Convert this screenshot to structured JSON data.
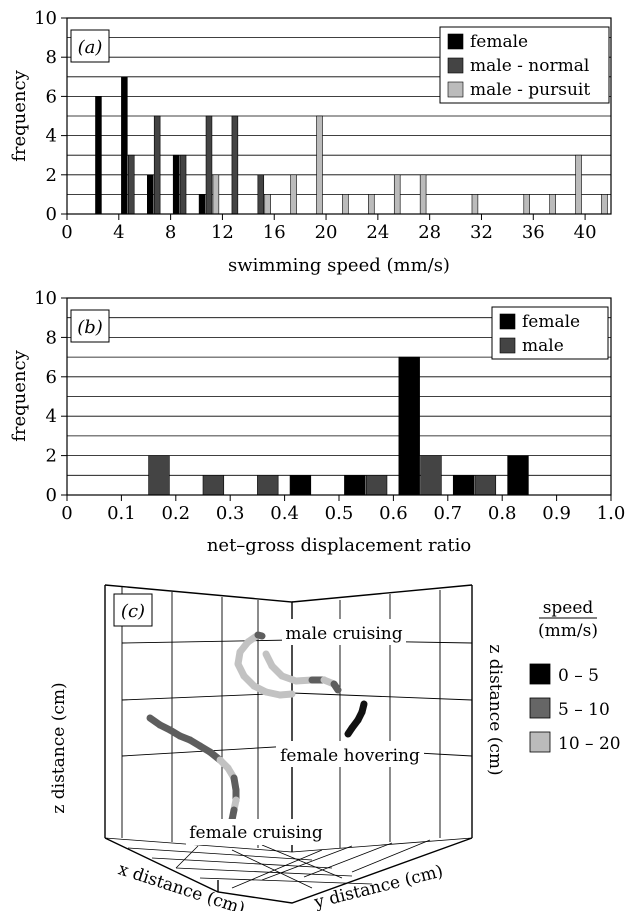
{
  "chart_data": [
    {
      "type": "bar",
      "panel": "(a)",
      "xlabel": "swimming speed (mm/s)",
      "ylabel": "frequency",
      "xlim": [
        0,
        42
      ],
      "ylim": [
        0,
        10
      ],
      "xticks": [
        "0",
        "4",
        "8",
        "12",
        "16",
        "20",
        "24",
        "28",
        "32",
        "36",
        "40"
      ],
      "yticks": [
        "0",
        "2",
        "4",
        "6",
        "8",
        "10"
      ],
      "legend": "top-right",
      "grid": true,
      "bin_width": 2,
      "bin_starts": [
        2,
        4,
        6,
        8,
        10,
        12,
        14,
        16,
        18,
        20,
        22,
        24,
        26,
        28,
        30,
        32,
        34,
        36,
        38,
        40
      ],
      "series": [
        {
          "name": "female",
          "color": "#000000",
          "values": [
            6,
            7,
            2,
            3,
            1,
            0,
            0,
            0,
            0,
            0,
            0,
            0,
            0,
            0,
            0,
            0,
            0,
            0,
            0,
            0
          ]
        },
        {
          "name": "male - normal",
          "color": "#444444",
          "values": [
            0,
            3,
            5,
            3,
            5,
            5,
            2,
            0,
            0,
            0,
            0,
            0,
            0,
            0,
            0,
            0,
            0,
            0,
            0,
            0
          ]
        },
        {
          "name": "male - pursuit",
          "color": "#bbbbbb",
          "values": [
            0,
            0,
            0,
            0,
            2,
            0,
            1,
            2,
            5,
            1,
            1,
            2,
            2,
            0,
            1,
            0,
            1,
            1,
            3,
            1
          ]
        }
      ]
    },
    {
      "type": "bar",
      "panel": "(b)",
      "xlabel": "net–gross displacement ratio",
      "ylabel": "frequency",
      "xlim": [
        0,
        1.0
      ],
      "ylim": [
        0,
        10
      ],
      "xticks": [
        "0",
        "0.1",
        "0.2",
        "0.3",
        "0.4",
        "0.5",
        "0.6",
        "0.7",
        "0.8",
        "0.9",
        "1.0"
      ],
      "yticks": [
        "0",
        "2",
        "4",
        "6",
        "8",
        "10"
      ],
      "legend": "top-right",
      "grid": true,
      "bin_width": 0.1,
      "bin_starts": [
        0.1,
        0.2,
        0.3,
        0.4,
        0.5,
        0.6,
        0.7,
        0.8
      ],
      "series": [
        {
          "name": "female",
          "color": "#000000",
          "values": [
            0,
            0,
            0,
            1,
            1,
            7,
            1,
            2
          ]
        },
        {
          "name": "male",
          "color": "#444444",
          "values": [
            2,
            1,
            1,
            0,
            1,
            2,
            1,
            0
          ]
        }
      ]
    },
    {
      "type": "scatter",
      "panel": "(c)",
      "axis_labels": {
        "z_left": "z distance (cm)",
        "z_right": "z distance (cm)",
        "x": "x distance (cm)",
        "y": "y distance (cm)"
      },
      "annotations": [
        "male cruising",
        "female hovering",
        "female cruising"
      ],
      "legend_title": [
        "speed",
        "(mm/s)"
      ],
      "legend": "right",
      "legend_entries": [
        {
          "label": "0 – 5",
          "color": "#000000"
        },
        {
          "label": "5 – 10",
          "color": "#666666"
        },
        {
          "label": "10 – 20",
          "color": "#bbbbbb"
        }
      ]
    }
  ]
}
